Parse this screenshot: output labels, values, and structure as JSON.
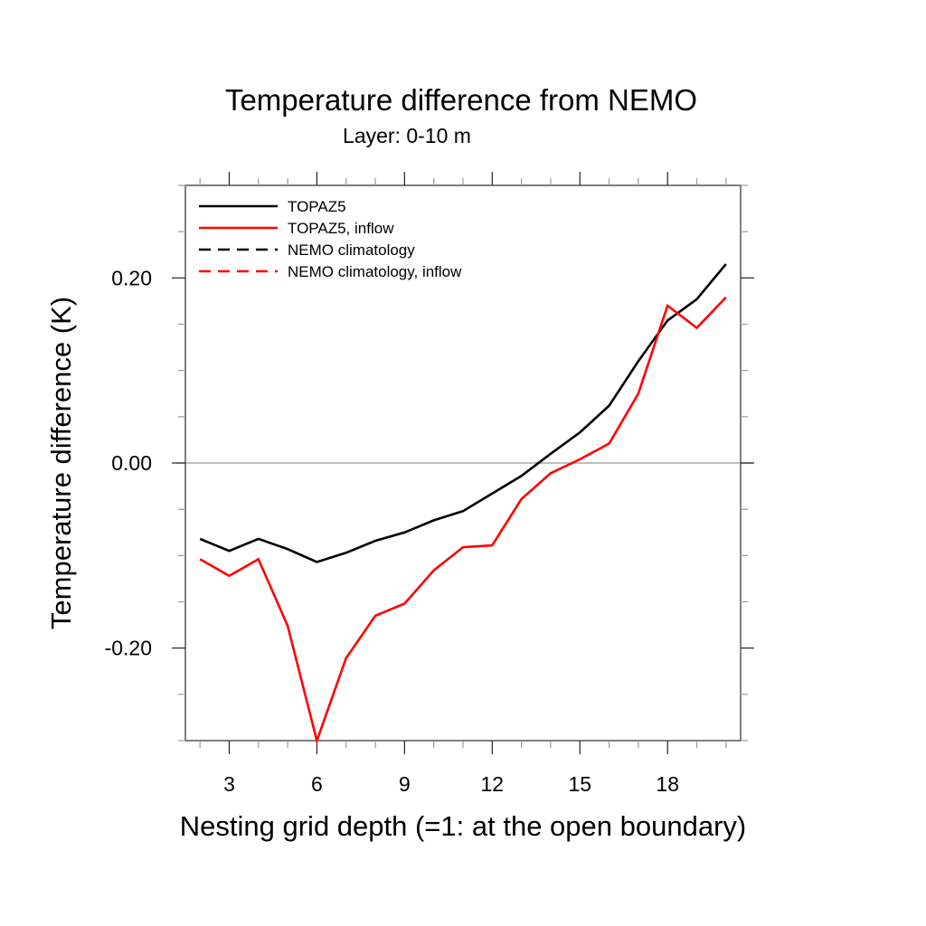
{
  "chart_data": {
    "type": "line",
    "title": "Temperature difference from NEMO",
    "subtitle": "Layer: 0-10 m",
    "xlabel": "Nesting grid depth (=1: at the open boundary)",
    "ylabel": "Temperature difference (K)",
    "xlim": [
      1.5,
      20.5
    ],
    "ylim": [
      -0.3,
      0.3
    ],
    "x_major_ticks": [
      3,
      6,
      9,
      12,
      15,
      18
    ],
    "x_tick_labels": [
      "3",
      "6",
      "9",
      "12",
      "15",
      "18"
    ],
    "x_minor_step": 1,
    "y_major_ticks": [
      -0.2,
      0.0,
      0.2
    ],
    "y_tick_labels": [
      "-0.20",
      "0.00",
      "0.20"
    ],
    "y_minor_step": 0.05,
    "reference_line": {
      "y": 0.0,
      "color": "#aaaaaa"
    },
    "grid": false,
    "legend_position": "top-left",
    "x": [
      2,
      3,
      4,
      5,
      6,
      7,
      8,
      9,
      10,
      11,
      12,
      13,
      14,
      15,
      16,
      17,
      18,
      19,
      20
    ],
    "series": [
      {
        "name": "TOPAZ5",
        "color": "#000000",
        "dash": "solid",
        "values": [
          -0.082,
          -0.095,
          -0.082,
          -0.093,
          -0.107,
          -0.097,
          -0.084,
          -0.075,
          -0.062,
          -0.052,
          -0.033,
          -0.014,
          0.01,
          0.033,
          0.062,
          0.11,
          0.154,
          0.177,
          0.215
        ]
      },
      {
        "name": "TOPAZ5, inflow",
        "color": "#ff0000",
        "dash": "solid",
        "values": [
          -0.104,
          -0.122,
          -0.104,
          -0.176,
          -0.3,
          -0.211,
          -0.165,
          -0.152,
          -0.116,
          -0.091,
          -0.089,
          -0.039,
          -0.011,
          0.004,
          0.021,
          0.075,
          0.17,
          0.146,
          0.179
        ]
      },
      {
        "name": "NEMO climatology",
        "color": "#000000",
        "dash": "dashed",
        "values": []
      },
      {
        "name": "NEMO climatology, inflow",
        "color": "#ff0000",
        "dash": "dashed",
        "values": []
      }
    ]
  }
}
